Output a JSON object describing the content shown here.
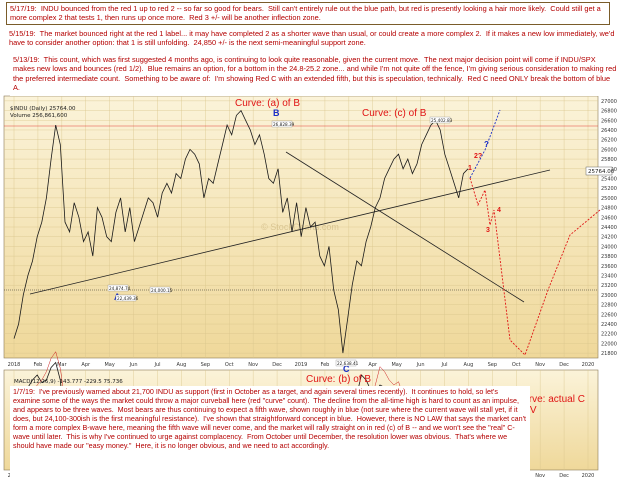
{
  "notes": {
    "n1": "5/17/19:  INDU bounced from the red 1 up to red 2 -- so far so good for bears.  Still can't entirely rule out the blue path, but red is presently looking a hair more likely.  Could still get a more complex 2 that tests 1, then runs up once more.  Red 3 +/- will be another inflection zone.",
    "n2": "5/15/19:  The market bounced right at the red 1 label... it may have completed 2 as a shorter wave than usual, or could create a more complex 2.  If it makes a new low immediately, we'd have to consider another option: that 1 is still unfolding.  24,850 +/- is the next semi-meaningful support zone.",
    "n3": "5/13/19:  This count, which was first suggested 4 months ago, is continuing to look quite reasonable, given the current move.  The next major decision point will come if INDU/SPX makes new lows and bounces (red 1/2).  Blue remains an option, for a bottom in the 24.8-25.2 zone... and while I'm not quite off the fence, I'm giving serious consideration to making red the preferred intermediate count.  Something to be aware of:  I'm showing Red C with an extended fifth, but this is speculation, technically.  Red C need ONLY break the bottom of blue A.",
    "n4": "1/7/19:  I've previously warned about 21,700 INDU as support (first in October as a target, and again several times recently).  It continues to hold, so let's examine some of the ways the market could throw a major curveball here (red \"curve\" count).  The decline from the all-time high is hard to count as an impulse, and appears to be three waves.  Most bears are thus continuing to expect a fifth wave, shown roughly in blue (not sure where the current wave will stall yet, if it does, but 24,100-300ish is the first meaningful resistance).  I've shown that straightforward concept in blue.  However, there is NO LAW that says the market can't form a more complex B-wave here, meaning the fifth wave will never come, and the market will rally straight on in red (c) of B -- and we won't see the \"real\" C-wave until later.  This is why I've continued to urge against complacency.  From October until December, the resolution lower was obvious.  That's where we should have made our \"easy money.\"  Here, it is no longer obvious, and we need to act accordingly."
  },
  "header": {
    "ticker": "$INDU (Daily) 25764.00",
    "volume": "Volume 256,861,600",
    "macd": "MACD(12,26,9) -143.777  -229.5  75.736"
  },
  "chart_data": {
    "type": "line",
    "title": "",
    "series": [
      {
        "name": "",
        "values": [
          22100,
          22400,
          23000,
          23400,
          23700,
          24200,
          24500,
          25000,
          25800,
          26500,
          26100,
          24500,
          24300,
          24900,
          24600,
          24100,
          24300,
          23800,
          24800,
          24600,
          24200,
          24100,
          24700,
          25000,
          24300,
          24800,
          24100,
          24400,
          24700,
          25000,
          24900,
          24600,
          25100,
          25300,
          25100,
          25500,
          25400,
          25800,
          26000,
          25900,
          25700,
          25000,
          25400,
          25300,
          25700,
          26100,
          26500,
          26300,
          26700,
          26800,
          26600,
          26400,
          26100,
          26300,
          25900,
          25400,
          25300,
          25600,
          24700,
          25000,
          24300,
          24900,
          24200,
          24800,
          24400,
          24500,
          23800,
          23600,
          24000,
          23100,
          22700,
          21800,
          22500,
          23200,
          23700,
          23600,
          24100,
          24400,
          24800,
          25000,
          25400,
          25600,
          25800,
          25900,
          25600,
          25800,
          25500,
          25700,
          26100,
          26300,
          26500,
          26600,
          26400,
          25900,
          25600,
          25300,
          25000,
          25500,
          25600
        ]
      }
    ],
    "x_ticks": [
      "2018",
      "Feb",
      "Mar",
      "Apr",
      "May",
      "Jun",
      "Jul",
      "Aug",
      "Sep",
      "Oct",
      "Nov",
      "Dec",
      "2019",
      "Feb",
      "Mar",
      "Apr",
      "May",
      "Jun",
      "Jul",
      "Aug",
      "Sep",
      "Oct",
      "Nov",
      "Dec",
      "2020"
    ],
    "y_ticks": [
      "27000",
      "26800",
      "26600",
      "26400",
      "26200",
      "26000",
      "25800",
      "25600",
      "25400",
      "25200",
      "25000",
      "24800",
      "24600",
      "24400",
      "24200",
      "24000",
      "23800",
      "23600",
      "23400",
      "23200",
      "23000",
      "22800",
      "22600",
      "22400",
      "22200",
      "22000",
      "21800"
    ],
    "ylim": [
      21700,
      27100
    ],
    "price_label": "25764.00",
    "price_labels": [
      "24,874.74",
      "22,439.36",
      "24,000.15",
      "26,828.39",
      "22,638.41",
      "25,402.83"
    ],
    "wave_labels": {
      "blue": [
        "A",
        "B",
        "C",
        "?"
      ],
      "red": [
        "1",
        "2?",
        "3",
        "4"
      ]
    },
    "annotations": {
      "curve_a": "Curve: (a) of B",
      "curve_b": "Curve: (b) of B",
      "curve_c": "Curve: (c) of B",
      "curve_final": "Curve: actual C\nof IV"
    },
    "watermark": "© StockCharts.com",
    "colors": {
      "bg_top": "#fbf3d9",
      "bg_bottom": "#f3dfa8",
      "price_line": "#1a1a1a",
      "blue": "#1a2ec8",
      "red": "#e01414",
      "macd": "#1a1a1a"
    }
  }
}
